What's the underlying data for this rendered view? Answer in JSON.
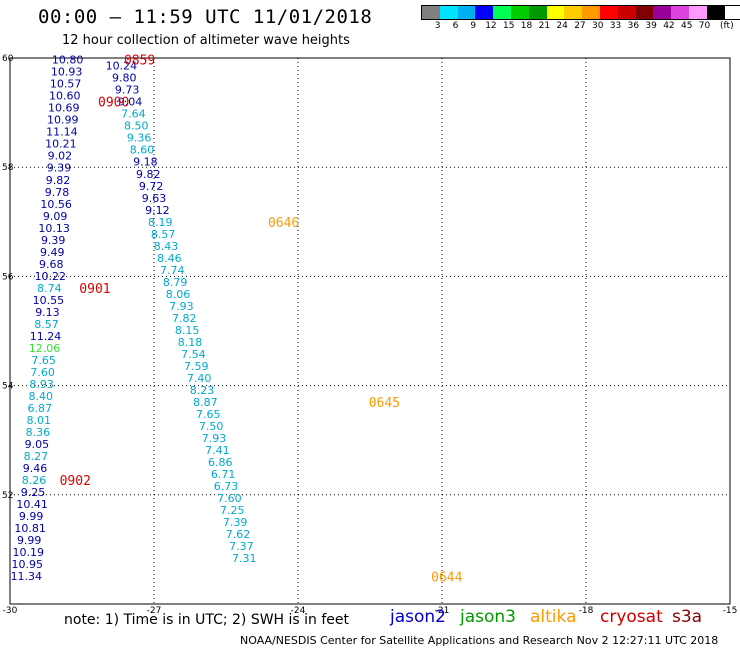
{
  "header": {
    "title": "00:00 – 11:59 UTC 11/01/2018",
    "subtitle": "12 hour collection of altimeter wave heights"
  },
  "legend": {
    "colors": [
      "#808080",
      "#00e5ff",
      "#00b0f0",
      "#0000ff",
      "#00ff55",
      "#00cc00",
      "#009900",
      "#ffff00",
      "#ffcc00",
      "#ff9900",
      "#ff0000",
      "#cc0000",
      "#800000",
      "#990099",
      "#dd44dd",
      "#ff99ff",
      "#000000"
    ],
    "labels": [
      "3",
      "6",
      "9",
      "12",
      "15",
      "18",
      "21",
      "24",
      "27",
      "30",
      "33",
      "36",
      "39",
      "42",
      "45",
      "70",
      "(ft)"
    ]
  },
  "footer": {
    "note": "note: 1) Time is in UTC; 2) SWH is in feet",
    "satellites": [
      {
        "name": "jason2",
        "color": "#0000cc"
      },
      {
        "name": "jason3",
        "color": "#009900"
      },
      {
        "name": "altika",
        "color": "#ff9900"
      },
      {
        "name": "cryosat",
        "color": "#cc0000"
      },
      {
        "name": "s3a",
        "color": "#880000"
      }
    ],
    "credit": "NOAA/NESDIS Center for Satellite Applications and Research     Nov  2 12:27:11 UTC 2018"
  },
  "chart_data": {
    "type": "scatter",
    "title": "00:00 – 11:59 UTC 11/01/2018",
    "xlim": [
      -30,
      -15
    ],
    "ylim": [
      50,
      60
    ],
    "x_ticks": [
      -30,
      -27,
      -24,
      -21,
      -18,
      -15
    ],
    "y_ticks": [
      60,
      58,
      56,
      54,
      52
    ],
    "grid": true,
    "colors": {
      "dark": "#0000aa",
      "light": "#00aacc",
      "green": "#33dd33",
      "red": "#dd0000",
      "orange": "#ff9900"
    },
    "series": [
      {
        "name": "cryosat",
        "points": [
          {
            "x": -28.8,
            "y": 59.97,
            "label": "10.80",
            "c": "dark"
          },
          {
            "x": -28.82,
            "y": 59.75,
            "label": "10.93",
            "c": "dark"
          },
          {
            "x": -28.84,
            "y": 59.53,
            "label": "10.57",
            "c": "dark"
          },
          {
            "x": -28.86,
            "y": 59.31,
            "label": "10.60",
            "c": "dark"
          },
          {
            "x": -28.88,
            "y": 59.09,
            "label": "10.69",
            "c": "dark"
          },
          {
            "x": -28.9,
            "y": 58.87,
            "label": "10.99",
            "c": "dark"
          },
          {
            "x": -28.92,
            "y": 58.65,
            "label": "11.14",
            "c": "dark"
          },
          {
            "x": -28.94,
            "y": 58.43,
            "label": "10.21",
            "c": "dark"
          },
          {
            "x": -28.96,
            "y": 58.21,
            "label": "9.02",
            "c": "dark"
          },
          {
            "x": -28.98,
            "y": 57.99,
            "label": "9.39",
            "c": "dark"
          },
          {
            "x": -29.0,
            "y": 57.77,
            "label": "9.82",
            "c": "dark"
          },
          {
            "x": -29.02,
            "y": 57.55,
            "label": "9.78",
            "c": "dark"
          },
          {
            "x": -29.04,
            "y": 57.33,
            "label": "10.56",
            "c": "dark"
          },
          {
            "x": -29.06,
            "y": 57.11,
            "label": "9.09",
            "c": "dark"
          },
          {
            "x": -29.08,
            "y": 56.89,
            "label": "10.13",
            "c": "dark"
          },
          {
            "x": -29.1,
            "y": 56.67,
            "label": "9.39",
            "c": "dark"
          },
          {
            "x": -29.12,
            "y": 56.45,
            "label": "9.49",
            "c": "dark"
          },
          {
            "x": -29.14,
            "y": 56.23,
            "label": "9.68",
            "c": "dark"
          },
          {
            "x": -29.16,
            "y": 56.01,
            "label": "10.22",
            "c": "dark"
          },
          {
            "x": -29.18,
            "y": 55.79,
            "label": "8.74",
            "c": "light"
          },
          {
            "x": -29.2,
            "y": 55.57,
            "label": "10.55",
            "c": "dark"
          },
          {
            "x": -29.22,
            "y": 55.35,
            "label": "9.13",
            "c": "dark"
          },
          {
            "x": -29.24,
            "y": 55.13,
            "label": "8.57",
            "c": "light"
          },
          {
            "x": -29.26,
            "y": 54.91,
            "label": "11.24",
            "c": "dark"
          },
          {
            "x": -29.28,
            "y": 54.69,
            "label": "12.06",
            "c": "green"
          },
          {
            "x": -29.3,
            "y": 54.47,
            "label": "7.65",
            "c": "light"
          },
          {
            "x": -29.32,
            "y": 54.25,
            "label": "7.60",
            "c": "light"
          },
          {
            "x": -29.34,
            "y": 54.03,
            "label": "8.93",
            "c": "light"
          },
          {
            "x": -29.36,
            "y": 53.81,
            "label": "8.40",
            "c": "light"
          },
          {
            "x": -29.38,
            "y": 53.59,
            "label": "6.87",
            "c": "light"
          },
          {
            "x": -29.4,
            "y": 53.37,
            "label": "8.01",
            "c": "light"
          },
          {
            "x": -29.42,
            "y": 53.15,
            "label": "8.36",
            "c": "light"
          },
          {
            "x": -29.44,
            "y": 52.93,
            "label": "9.05",
            "c": "dark"
          },
          {
            "x": -29.46,
            "y": 52.71,
            "label": "8.27",
            "c": "light"
          },
          {
            "x": -29.48,
            "y": 52.49,
            "label": "9.46",
            "c": "dark"
          },
          {
            "x": -29.5,
            "y": 52.27,
            "label": "8.26",
            "c": "light"
          },
          {
            "x": -29.52,
            "y": 52.05,
            "label": "9.25",
            "c": "dark"
          },
          {
            "x": -29.54,
            "y": 51.83,
            "label": "10.41",
            "c": "dark"
          },
          {
            "x": -29.56,
            "y": 51.61,
            "label": "9.99",
            "c": "dark"
          },
          {
            "x": -29.58,
            "y": 51.39,
            "label": "10.81",
            "c": "dark"
          },
          {
            "x": -29.6,
            "y": 51.17,
            "label": "9.99",
            "c": "dark"
          },
          {
            "x": -29.62,
            "y": 50.95,
            "label": "10.19",
            "c": "dark"
          },
          {
            "x": -29.64,
            "y": 50.73,
            "label": "10.95",
            "c": "dark"
          },
          {
            "x": -29.66,
            "y": 50.51,
            "label": "11.34",
            "c": "dark"
          }
        ]
      },
      {
        "name": "altika",
        "points": [
          {
            "x": -27.68,
            "y": 59.86,
            "label": "10.24",
            "c": "dark"
          },
          {
            "x": -27.62,
            "y": 59.64,
            "label": "9.80",
            "c": "dark"
          },
          {
            "x": -27.56,
            "y": 59.42,
            "label": "9.73",
            "c": "dark"
          },
          {
            "x": -27.5,
            "y": 59.2,
            "label": "9.04",
            "c": "dark"
          },
          {
            "x": -27.43,
            "y": 58.98,
            "label": "7.64",
            "c": "light"
          },
          {
            "x": -27.37,
            "y": 58.76,
            "label": "8.50",
            "c": "light"
          },
          {
            "x": -27.31,
            "y": 58.54,
            "label": "9.36",
            "c": "light"
          },
          {
            "x": -27.25,
            "y": 58.32,
            "label": "8.60",
            "c": "light"
          },
          {
            "x": -27.18,
            "y": 58.1,
            "label": "9.18",
            "c": "dark"
          },
          {
            "x": -27.12,
            "y": 57.88,
            "label": "9.82",
            "c": "dark"
          },
          {
            "x": -27.06,
            "y": 57.66,
            "label": "9.72",
            "c": "dark"
          },
          {
            "x": -27.0,
            "y": 57.44,
            "label": "9.63",
            "c": "dark"
          },
          {
            "x": -26.93,
            "y": 57.22,
            "label": "9.12",
            "c": "dark"
          },
          {
            "x": -26.87,
            "y": 57.0,
            "label": "8.19",
            "c": "light"
          },
          {
            "x": -26.81,
            "y": 56.78,
            "label": "8.57",
            "c": "light"
          },
          {
            "x": -26.75,
            "y": 56.56,
            "label": "8.43",
            "c": "light"
          },
          {
            "x": -26.68,
            "y": 56.34,
            "label": "8.46",
            "c": "light"
          },
          {
            "x": -26.62,
            "y": 56.12,
            "label": "7.74",
            "c": "light"
          },
          {
            "x": -26.56,
            "y": 55.9,
            "label": "8.79",
            "c": "light"
          },
          {
            "x": -26.5,
            "y": 55.68,
            "label": "8.06",
            "c": "light"
          },
          {
            "x": -26.43,
            "y": 55.46,
            "label": "7.93",
            "c": "light"
          },
          {
            "x": -26.37,
            "y": 55.24,
            "label": "7.82",
            "c": "light"
          },
          {
            "x": -26.31,
            "y": 55.02,
            "label": "8.15",
            "c": "light"
          },
          {
            "x": -26.25,
            "y": 54.8,
            "label": "8.18",
            "c": "light"
          },
          {
            "x": -26.18,
            "y": 54.58,
            "label": "7.54",
            "c": "light"
          },
          {
            "x": -26.12,
            "y": 54.36,
            "label": "7.59",
            "c": "light"
          },
          {
            "x": -26.06,
            "y": 54.14,
            "label": "7.40",
            "c": "light"
          },
          {
            "x": -26.0,
            "y": 53.92,
            "label": "8.23",
            "c": "light"
          },
          {
            "x": -25.93,
            "y": 53.7,
            "label": "8.87",
            "c": "light"
          },
          {
            "x": -25.87,
            "y": 53.48,
            "label": "7.65",
            "c": "light"
          },
          {
            "x": -25.81,
            "y": 53.26,
            "label": "7.50",
            "c": "light"
          },
          {
            "x": -25.75,
            "y": 53.04,
            "label": "7.93",
            "c": "light"
          },
          {
            "x": -25.68,
            "y": 52.82,
            "label": "7.41",
            "c": "light"
          },
          {
            "x": -25.62,
            "y": 52.6,
            "label": "6.86",
            "c": "light"
          },
          {
            "x": -25.56,
            "y": 52.38,
            "label": "6.71",
            "c": "light"
          },
          {
            "x": -25.5,
            "y": 52.16,
            "label": "6.73",
            "c": "light"
          },
          {
            "x": -25.43,
            "y": 51.94,
            "label": "7.60",
            "c": "light"
          },
          {
            "x": -25.37,
            "y": 51.72,
            "label": "7.25",
            "c": "light"
          },
          {
            "x": -25.31,
            "y": 51.5,
            "label": "7.39",
            "c": "light"
          },
          {
            "x": -25.25,
            "y": 51.28,
            "label": "7.62",
            "c": "light"
          },
          {
            "x": -25.18,
            "y": 51.06,
            "label": "7.37",
            "c": "light"
          },
          {
            "x": -25.12,
            "y": 50.84,
            "label": "7.31",
            "c": "light"
          }
        ]
      }
    ],
    "time_labels": [
      {
        "x": -27.3,
        "y": 59.97,
        "label": "0859",
        "c": "red"
      },
      {
        "x": -27.84,
        "y": 59.2,
        "label": "0900",
        "c": "red"
      },
      {
        "x": -28.23,
        "y": 55.79,
        "label": "0901",
        "c": "red"
      },
      {
        "x": -28.64,
        "y": 52.27,
        "label": "0902",
        "c": "red"
      },
      {
        "x": -24.3,
        "y": 57.0,
        "label": "0646",
        "c": "orange"
      },
      {
        "x": -22.2,
        "y": 53.7,
        "label": "0645",
        "c": "orange"
      },
      {
        "x": -20.9,
        "y": 50.5,
        "label": "0644",
        "c": "orange"
      }
    ]
  }
}
